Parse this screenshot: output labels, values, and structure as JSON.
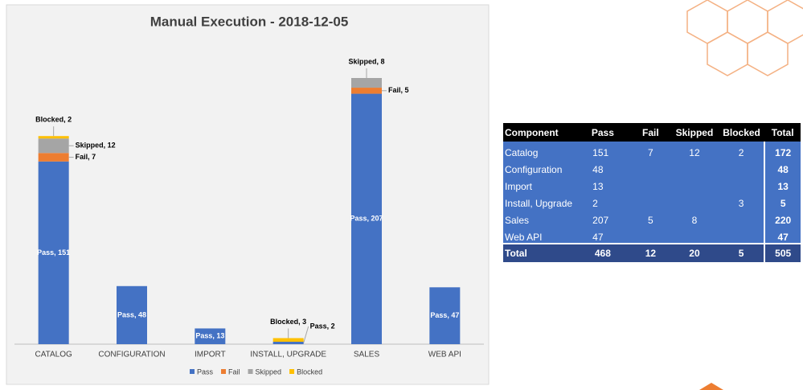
{
  "chart_data": {
    "type": "stacked-bar",
    "title": "Manual Execution - 2018-12-05",
    "categories": [
      "CATALOG",
      "CONFIGURATION",
      "IMPORT",
      "INSTALL, UPGRADE",
      "SALES",
      "WEB API"
    ],
    "series": [
      {
        "name": "Pass",
        "color": "#4472c4",
        "values": [
          151,
          48,
          13,
          2,
          207,
          47
        ],
        "value_labels": [
          "Pass, 151",
          "Pass, 48",
          "Pass, 13",
          "Pass, 2",
          "Pass, 207",
          "Pass, 47"
        ]
      },
      {
        "name": "Fail",
        "color": "#ed7d31",
        "values": [
          7,
          null,
          null,
          null,
          5,
          null
        ],
        "value_labels": [
          "Fail, 7",
          null,
          null,
          null,
          "Fail, 5",
          null
        ]
      },
      {
        "name": "Skipped",
        "color": "#a5a5a5",
        "values": [
          12,
          null,
          null,
          null,
          8,
          null
        ],
        "value_labels": [
          "Skipped, 12",
          null,
          null,
          null,
          "Skipped, 8",
          null
        ]
      },
      {
        "name": "Blocked",
        "color": "#ffc000",
        "values": [
          2,
          null,
          null,
          3,
          null,
          null
        ],
        "value_labels": [
          "Blocked, 2",
          null,
          null,
          "Blocked, 3",
          null,
          null
        ]
      }
    ],
    "legend": "bottom"
  },
  "table": {
    "header": [
      "Component",
      "Pass",
      "Fail",
      "Skipped",
      "Blocked",
      "Total"
    ],
    "rows": [
      [
        "Catalog",
        151,
        7,
        12,
        2,
        172
      ],
      [
        "Configuration",
        48,
        null,
        null,
        null,
        48
      ],
      [
        "Import",
        13,
        null,
        null,
        null,
        13
      ],
      [
        "Install, Upgrade",
        2,
        null,
        null,
        3,
        5
      ],
      [
        "Sales",
        207,
        5,
        8,
        null,
        220
      ],
      [
        "Web API",
        47,
        null,
        null,
        null,
        47
      ]
    ],
    "total": [
      "Total",
      468,
      12,
      20,
      5,
      505
    ]
  }
}
